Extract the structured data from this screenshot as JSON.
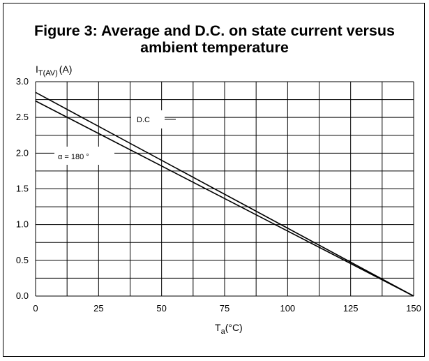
{
  "title_line1": "Figure 3: Average and D.C. on state current versus",
  "title_line2": "ambient temperature",
  "chart_data": {
    "type": "line",
    "ylabel": {
      "main": "I",
      "sub": "T(AV)",
      "unit": "(A)"
    },
    "xlabel": {
      "main": "T",
      "sub": "a",
      "unit": "(°C)"
    },
    "xlim": [
      0,
      150
    ],
    "ylim": [
      0,
      3.0
    ],
    "x_ticks": [
      "0",
      "25",
      "50",
      "75",
      "100",
      "125",
      "150"
    ],
    "y_ticks": [
      "0.0",
      "0.5",
      "1.0",
      "1.5",
      "2.0",
      "2.5",
      "3.0"
    ],
    "grid": true,
    "series": [
      {
        "name": "D.C",
        "x": [
          0,
          150
        ],
        "y": [
          2.85,
          0
        ]
      },
      {
        "name": "α = 180 °",
        "x": [
          0,
          150
        ],
        "y": [
          2.73,
          0
        ]
      }
    ]
  }
}
